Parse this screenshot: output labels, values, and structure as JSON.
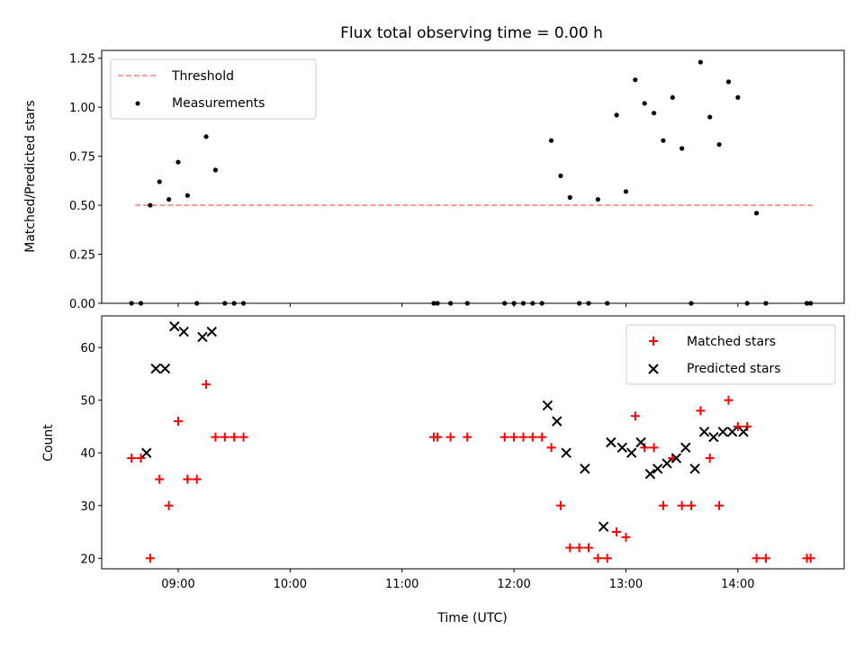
{
  "chart_data": [
    {
      "type": "scatter",
      "title": "Flux total observing time = 0.00 h",
      "xlabel": "",
      "ylabel": "Matched/Predicted stars",
      "ylim": [
        0,
        1.29
      ],
      "yticks": [
        "0.00",
        "0.25",
        "0.50",
        "0.75",
        "1.00",
        "1.25"
      ],
      "ytick_values": [
        0,
        0.25,
        0.5,
        0.75,
        1.0,
        1.25
      ],
      "legend": "top-left",
      "grid": false,
      "colors": {
        "threshold": "#ff8080",
        "measurements": "#000000"
      },
      "threshold": {
        "name": "Threshold",
        "value": 0.5,
        "x_start": "08:37",
        "x_end": "14:40"
      },
      "series": [
        {
          "name": "Measurements",
          "x": [
            "08:35",
            "08:40",
            "08:45",
            "08:50",
            "08:55",
            "09:00",
            "09:05",
            "09:10",
            "09:15",
            "09:20",
            "09:25",
            "09:30",
            "09:35",
            "11:17",
            "11:19",
            "11:26",
            "11:35",
            "11:55",
            "12:00",
            "12:05",
            "12:10",
            "12:15",
            "12:20",
            "12:25",
            "12:30",
            "12:35",
            "12:40",
            "12:45",
            "12:50",
            "12:55",
            "13:00",
            "13:05",
            "13:10",
            "13:15",
            "13:20",
            "13:25",
            "13:30",
            "13:35",
            "13:40",
            "13:45",
            "13:50",
            "13:55",
            "14:00",
            "14:05",
            "14:10",
            "14:15",
            "14:37",
            "14:39"
          ],
          "values": [
            0,
            0,
            0.5,
            0.62,
            0.53,
            0.72,
            0.55,
            0,
            0.85,
            0.68,
            0,
            0,
            0,
            0,
            0,
            0,
            0,
            0,
            0,
            0,
            0,
            0,
            0.83,
            0.65,
            0.54,
            0,
            0,
            0.53,
            0,
            0.96,
            0.57,
            1.14,
            1.02,
            0.97,
            0.83,
            1.05,
            0.79,
            0,
            1.23,
            0.95,
            0.81,
            1.13,
            1.05,
            0,
            0.46,
            0,
            0,
            0
          ]
        }
      ]
    },
    {
      "type": "scatter",
      "title": "",
      "xlabel": "Time (UTC)",
      "ylabel": "Count",
      "ylim": [
        18,
        66
      ],
      "yticks": [
        "20",
        "30",
        "40",
        "50",
        "60"
      ],
      "ytick_values": [
        20,
        30,
        40,
        50,
        60
      ],
      "xticks": [
        "09:00",
        "10:00",
        "11:00",
        "12:00",
        "13:00",
        "14:00"
      ],
      "xlim": [
        "08:19",
        "14:57"
      ],
      "legend": "top-right",
      "grid": false,
      "colors": {
        "matched": "#ff0000",
        "predicted": "#000000"
      },
      "series": [
        {
          "name": "Matched stars",
          "x": [
            "08:35",
            "08:40",
            "08:45",
            "08:50",
            "08:55",
            "09:00",
            "09:05",
            "09:10",
            "09:15",
            "09:20",
            "09:25",
            "09:30",
            "09:35",
            "11:17",
            "11:19",
            "11:26",
            "11:35",
            "11:55",
            "12:00",
            "12:05",
            "12:10",
            "12:15",
            "12:20",
            "12:25",
            "12:30",
            "12:35",
            "12:40",
            "12:45",
            "12:50",
            "12:55",
            "13:00",
            "13:05",
            "13:10",
            "13:15",
            "13:20",
            "13:25",
            "13:30",
            "13:35",
            "13:40",
            "13:45",
            "13:50",
            "13:55",
            "14:00",
            "14:05",
            "14:10",
            "14:15",
            "14:37",
            "14:39"
          ],
          "values": [
            39,
            39,
            20,
            35,
            30,
            46,
            35,
            35,
            53,
            43,
            43,
            43,
            43,
            43,
            43,
            43,
            43,
            43,
            43,
            43,
            43,
            43,
            41,
            30,
            22,
            22,
            22,
            20,
            20,
            25,
            24,
            47,
            41,
            41,
            30,
            39,
            30,
            30,
            48,
            39,
            30,
            50,
            45,
            45,
            20,
            20,
            20,
            20
          ]
        },
        {
          "name": "Predicted stars",
          "x": [
            "08:43",
            "08:48",
            "08:53",
            "08:58",
            "09:03",
            "09:13",
            "09:18",
            "12:18",
            "12:23",
            "12:28",
            "12:38",
            "12:48",
            "12:52",
            "12:58",
            "13:03",
            "13:08",
            "13:13",
            "13:17",
            "13:22",
            "13:27",
            "13:32",
            "13:37",
            "13:42",
            "13:47",
            "13:52",
            "13:57",
            "14:03"
          ],
          "values": [
            40,
            56,
            56,
            64,
            63,
            62,
            63,
            49,
            46,
            40,
            37,
            26,
            42,
            41,
            40,
            42,
            36,
            37,
            38,
            39,
            41,
            37,
            44,
            43,
            44,
            44,
            44
          ]
        }
      ]
    }
  ]
}
